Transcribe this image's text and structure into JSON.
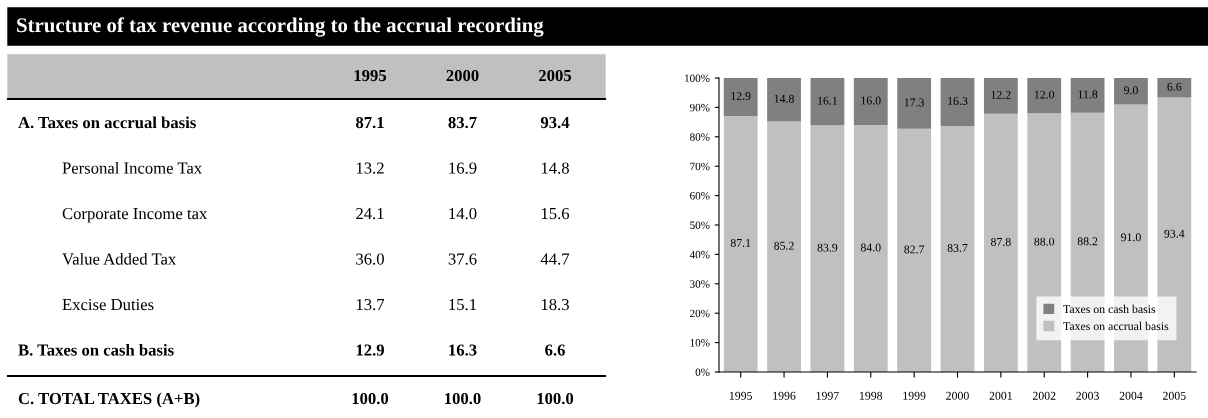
{
  "chart_data": [
    {
      "type": "other",
      "title": "Structure of tax revenue according to the accrual recording",
      "categories": [
        "1995",
        "2000",
        "2005"
      ],
      "y_categories": [
        "A. Taxes on accrual basis",
        "Personal Income Tax",
        "Corporate Income tax",
        "Value Added Tax",
        "Excise Duties",
        "B. Taxes on cash basis",
        "C. TOTAL TAXES (A+B)"
      ],
      "cell_labels": [
        [
          "87.1",
          "83.7",
          "93.4"
        ],
        [
          "13.2",
          "16.9",
          "14.8"
        ],
        [
          "24.1",
          "14.0",
          "15.6"
        ],
        [
          "36.0",
          "37.6",
          "44.7"
        ],
        [
          "13.7",
          "15.1",
          "18.3"
        ],
        [
          "12.9",
          "16.3",
          "6.6"
        ],
        [
          "100.0",
          "100.0",
          "100.0"
        ]
      ]
    },
    {
      "type": "bar",
      "stacked": true,
      "categories": [
        "1995",
        "1996",
        "1997",
        "1998",
        "1999",
        "2000",
        "2001",
        "2002",
        "2003",
        "2004",
        "2005"
      ],
      "series": [
        {
          "name": "Taxes on accrual basis",
          "color": "#c0c0c0",
          "values": [
            87.1,
            85.2,
            83.9,
            84.0,
            82.7,
            83.7,
            87.8,
            88.0,
            88.2,
            91.0,
            93.4
          ],
          "value_labels": [
            "87.1",
            "85.2",
            "83.9",
            "84.0",
            "82.7",
            "83.7",
            "87.8",
            "88.0",
            "88.2",
            "91.0",
            "93.4"
          ]
        },
        {
          "name": "Taxes on cash basis",
          "color": "#808080",
          "values": [
            12.9,
            14.8,
            16.1,
            16.0,
            17.3,
            16.3,
            12.2,
            12.0,
            11.8,
            9.0,
            6.6
          ],
          "value_labels": [
            "12.9",
            "14.8",
            "16.1",
            "16.0",
            "17.3",
            "16.3",
            "12.2",
            "12.0",
            "11.8",
            "9.0",
            "6.6"
          ]
        }
      ],
      "ylim": [
        0,
        100
      ],
      "yticks": [
        {
          "value": 0,
          "label": "0%"
        },
        {
          "value": 10,
          "label": "10%"
        },
        {
          "value": 20,
          "label": "20%"
        },
        {
          "value": 30,
          "label": "30%"
        },
        {
          "value": 40,
          "label": "40%"
        },
        {
          "value": 50,
          "label": "50%"
        },
        {
          "value": 60,
          "label": "60%"
        },
        {
          "value": 70,
          "label": "70%"
        },
        {
          "value": 80,
          "label": "80%"
        },
        {
          "value": 90,
          "label": "90%"
        },
        {
          "value": 100,
          "label": "100%"
        }
      ],
      "legend": "bottom right",
      "grid": false
    }
  ]
}
